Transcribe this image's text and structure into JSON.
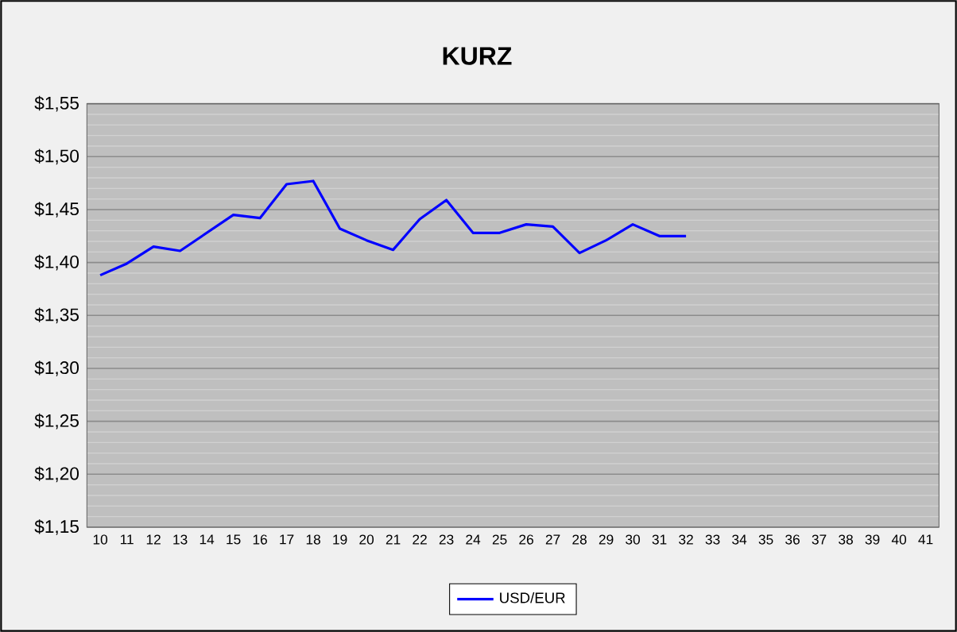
{
  "chart_data": {
    "type": "line",
    "title": "KURZ",
    "categories": [
      "10",
      "11",
      "12",
      "13",
      "14",
      "15",
      "16",
      "17",
      "18",
      "19",
      "20",
      "21",
      "22",
      "23",
      "24",
      "25",
      "26",
      "27",
      "28",
      "29",
      "30",
      "31",
      "32",
      "33",
      "34",
      "35",
      "36",
      "37",
      "38",
      "39",
      "40",
      "41"
    ],
    "series": [
      {
        "name": "USD/EUR",
        "color": "#0000ff",
        "values": [
          1.388,
          1.399,
          1.415,
          1.411,
          1.428,
          1.445,
          1.442,
          1.474,
          1.477,
          1.432,
          1.421,
          1.412,
          1.441,
          1.459,
          1.428,
          1.428,
          1.436,
          1.434,
          1.409,
          1.421,
          1.436,
          1.425,
          1.425,
          null,
          null,
          null,
          null,
          null,
          null,
          null,
          null,
          null
        ]
      }
    ],
    "ylim": [
      1.15,
      1.55
    ],
    "yticks": [
      {
        "value": 1.15,
        "label": "$1,15"
      },
      {
        "value": 1.2,
        "label": "$1,20"
      },
      {
        "value": 1.25,
        "label": "$1,25"
      },
      {
        "value": 1.3,
        "label": "$1,30"
      },
      {
        "value": 1.35,
        "label": "$1,35"
      },
      {
        "value": 1.4,
        "label": "$1,40"
      },
      {
        "value": 1.45,
        "label": "$1,45"
      },
      {
        "value": 1.5,
        "label": "$1,50"
      },
      {
        "value": 1.55,
        "label": "$1,55"
      }
    ],
    "grid": "y",
    "legend": "bottom",
    "line_style": "solid",
    "marker": "none"
  }
}
